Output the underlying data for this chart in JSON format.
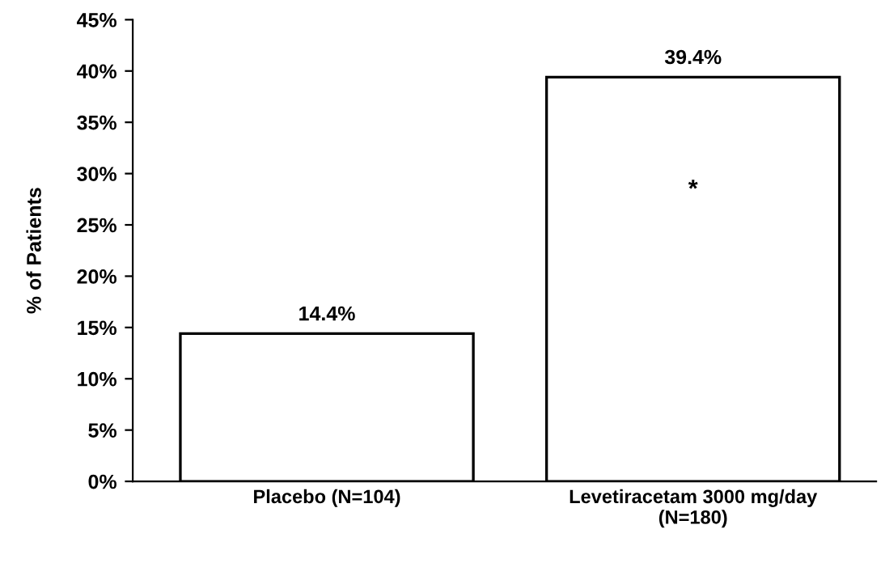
{
  "chart_data": {
    "type": "bar",
    "ylabel": "% of Patients",
    "categories": [
      "Placebo (N=104)",
      "Levetiracetam 3000 mg/day\n(N=180)"
    ],
    "values": [
      14.4,
      39.4
    ],
    "value_labels": [
      "14.4%",
      "39.4%"
    ],
    "color": "#ffffff",
    "ylim": [
      0,
      45
    ],
    "yticks": [
      {
        "value": 0,
        "label": "0%"
      },
      {
        "value": 5,
        "label": "5%"
      },
      {
        "value": 10,
        "label": "10%"
      },
      {
        "value": 15,
        "label": "15%"
      },
      {
        "value": 20,
        "label": "20%"
      },
      {
        "value": 25,
        "label": "25%"
      },
      {
        "value": 30,
        "label": "30%"
      },
      {
        "value": 35,
        "label": "35%"
      },
      {
        "value": 40,
        "label": "40%"
      },
      {
        "value": 45,
        "label": "45%"
      }
    ],
    "annotations": [
      "*"
    ],
    "grid": false,
    "legend": false
  }
}
